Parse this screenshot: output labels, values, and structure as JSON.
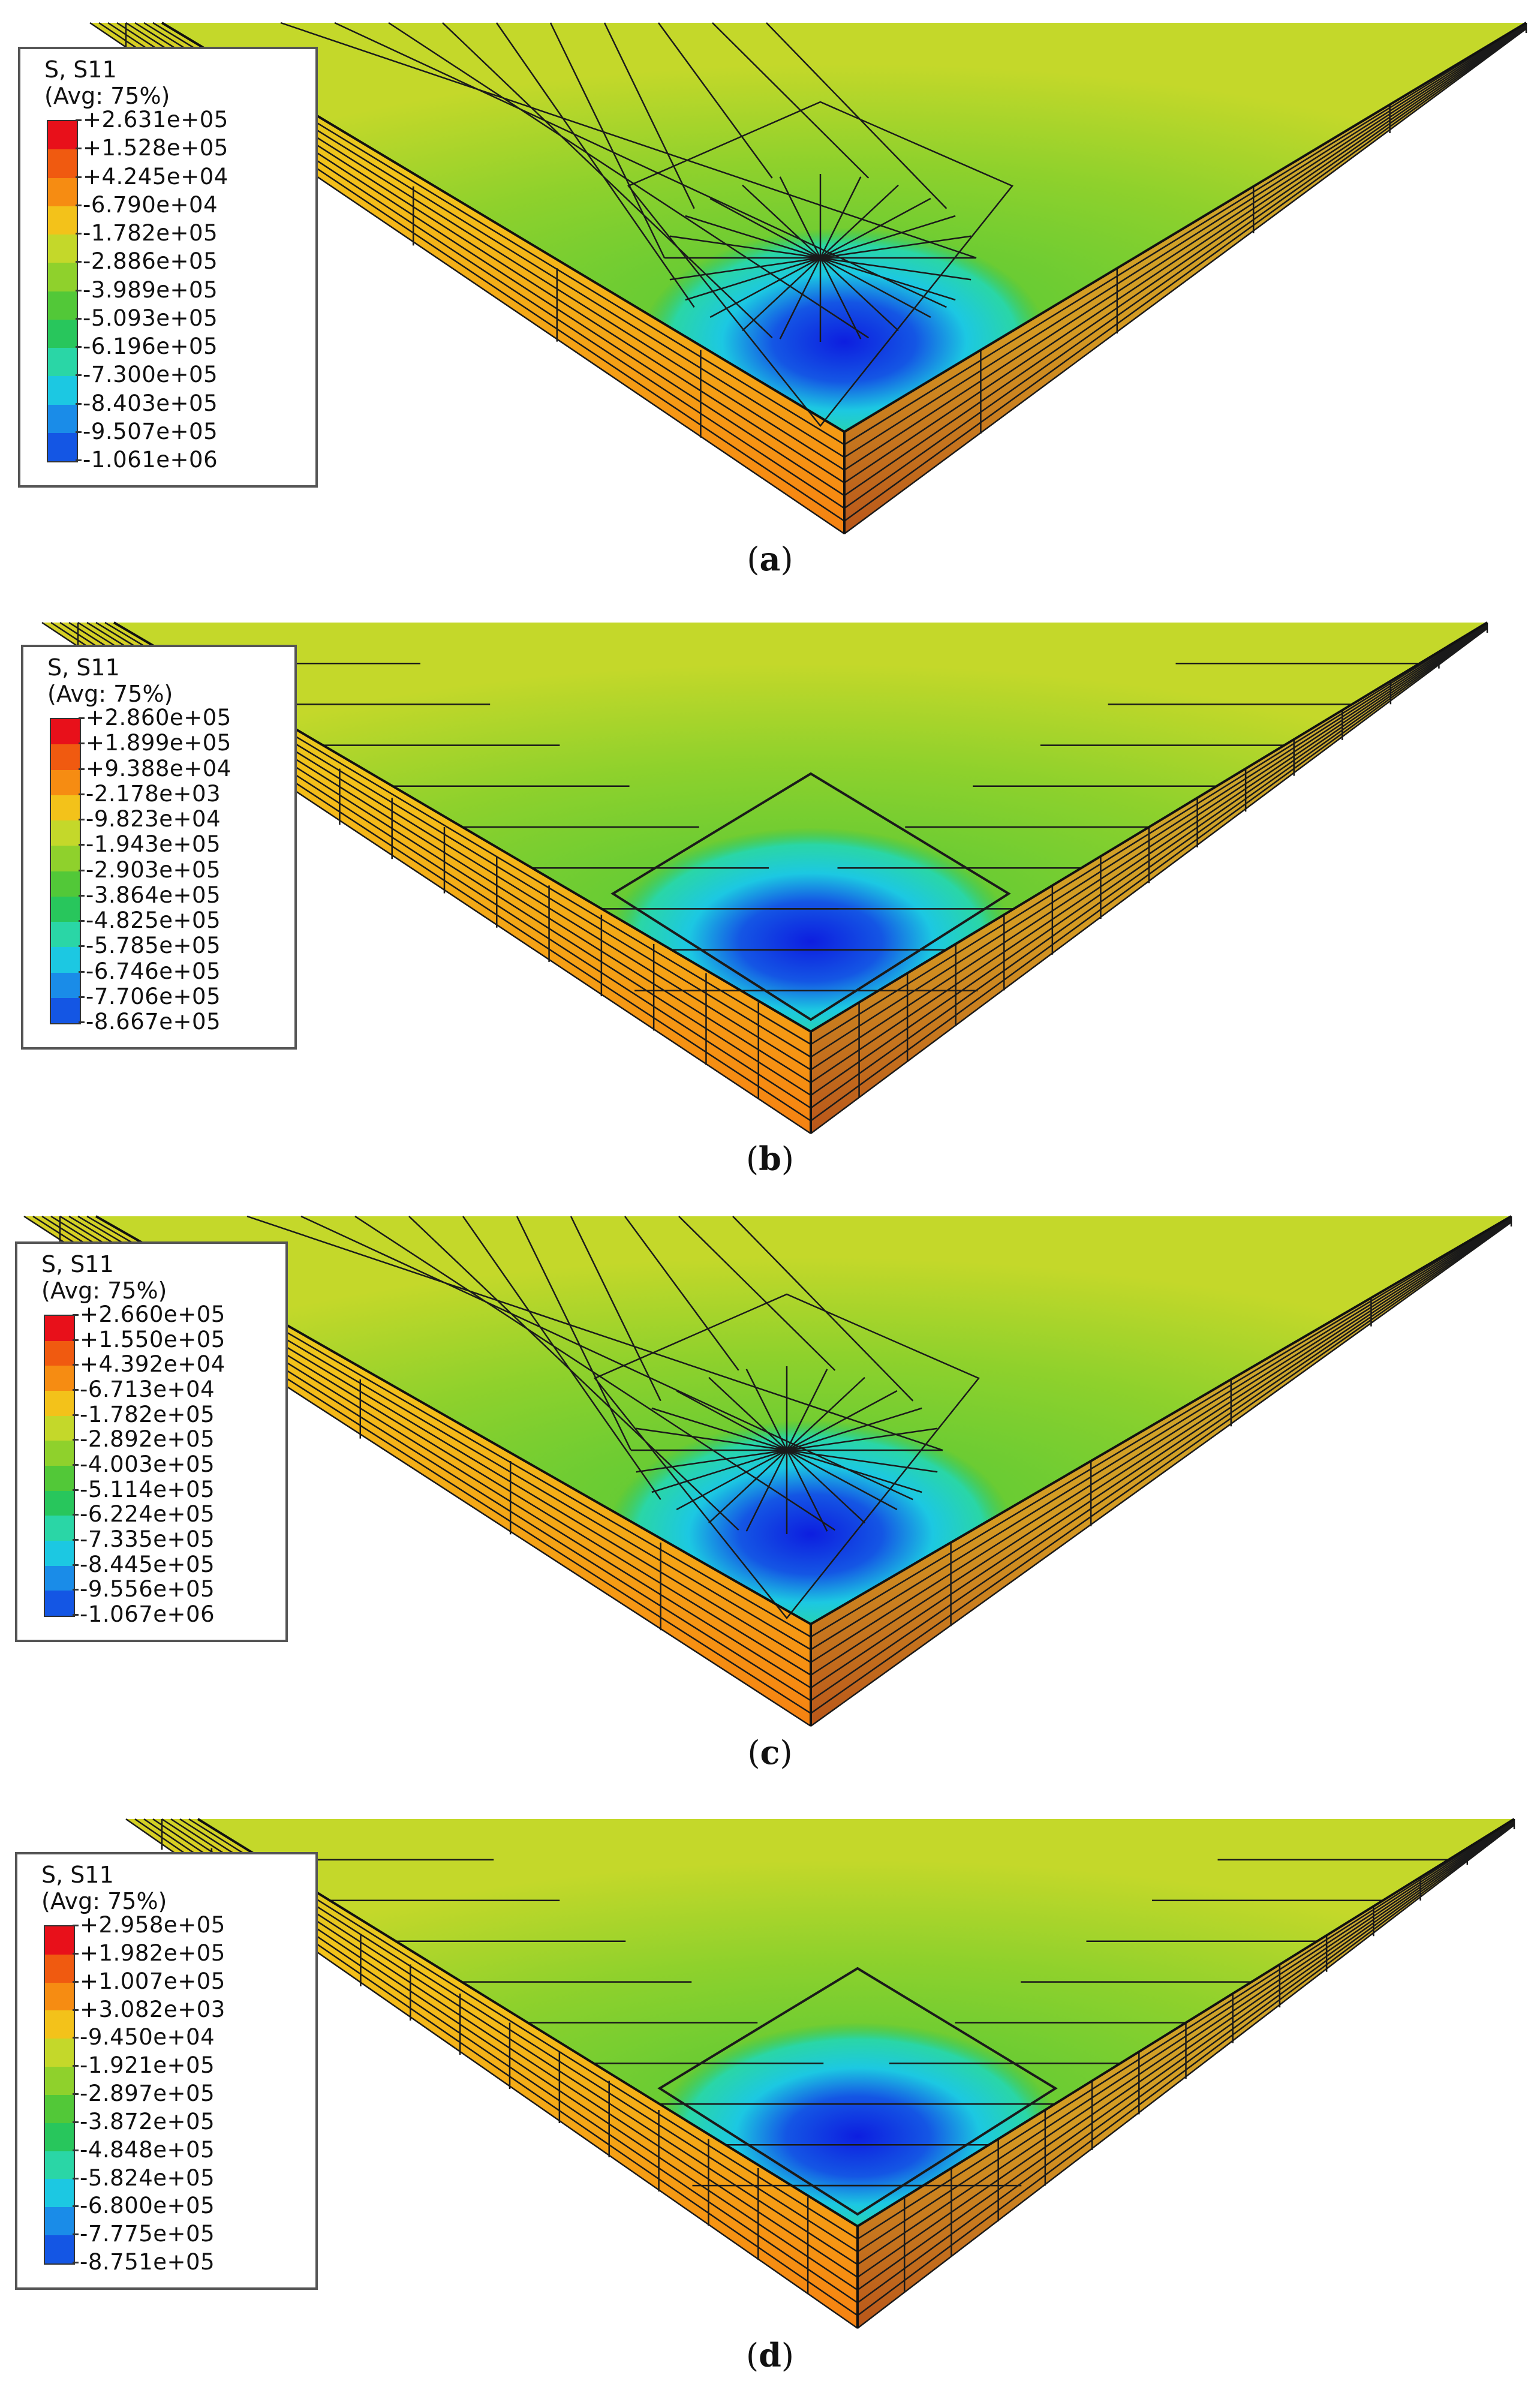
{
  "palette": [
    "#e8101a",
    "#f05a10",
    "#f68c12",
    "#f3c21a",
    "#c4d82a",
    "#8fd12c",
    "#52c838",
    "#28c65c",
    "#2ad6a6",
    "#1cc8e2",
    "#1a8ce8",
    "#1456e4",
    "#0d1ee0"
  ],
  "panels": [
    {
      "id": "a",
      "caption_letter": "a",
      "legend_title_line1": "S, S11",
      "legend_title_line2": "(Avg: 75%)",
      "legend_values": [
        "+2.631e+05",
        "+1.528e+05",
        "+4.245e+04",
        "-6.790e+04",
        "-1.782e+05",
        "-2.886e+05",
        "-3.989e+05",
        "-5.093e+05",
        "-6.196e+05",
        "-7.300e+05",
        "-8.403e+05",
        "-9.507e+05",
        "-1.061e+06"
      ],
      "mesh": "tetrahedral"
    },
    {
      "id": "b",
      "caption_letter": "b",
      "legend_title_line1": "S, S11",
      "legend_title_line2": "(Avg: 75%)",
      "legend_values": [
        "+2.860e+05",
        "+1.899e+05",
        "+9.388e+04",
        "-2.178e+03",
        "-9.823e+04",
        "-1.943e+05",
        "-2.903e+05",
        "-3.864e+05",
        "-4.825e+05",
        "-5.785e+05",
        "-6.746e+05",
        "-7.706e+05",
        "-8.667e+05"
      ],
      "mesh": "hexahedral"
    },
    {
      "id": "c",
      "caption_letter": "c",
      "legend_title_line1": "S, S11",
      "legend_title_line2": "(Avg: 75%)",
      "legend_values": [
        "+2.660e+05",
        "+1.550e+05",
        "+4.392e+04",
        "-6.713e+04",
        "-1.782e+05",
        "-2.892e+05",
        "-4.003e+05",
        "-5.114e+05",
        "-6.224e+05",
        "-7.335e+05",
        "-8.445e+05",
        "-9.556e+05",
        "-1.067e+06"
      ],
      "mesh": "tetrahedral"
    },
    {
      "id": "d",
      "caption_letter": "d",
      "legend_title_line1": "S, S11",
      "legend_title_line2": "(Avg: 75%)",
      "legend_values": [
        "+2.958e+05",
        "+1.982e+05",
        "+1.007e+05",
        "+3.082e+03",
        "-9.450e+04",
        "-1.921e+05",
        "-2.897e+05",
        "-3.872e+05",
        "-4.848e+05",
        "-5.824e+05",
        "-6.800e+05",
        "-7.775e+05",
        "-8.751e+05"
      ],
      "mesh": "hexahedral"
    }
  ]
}
